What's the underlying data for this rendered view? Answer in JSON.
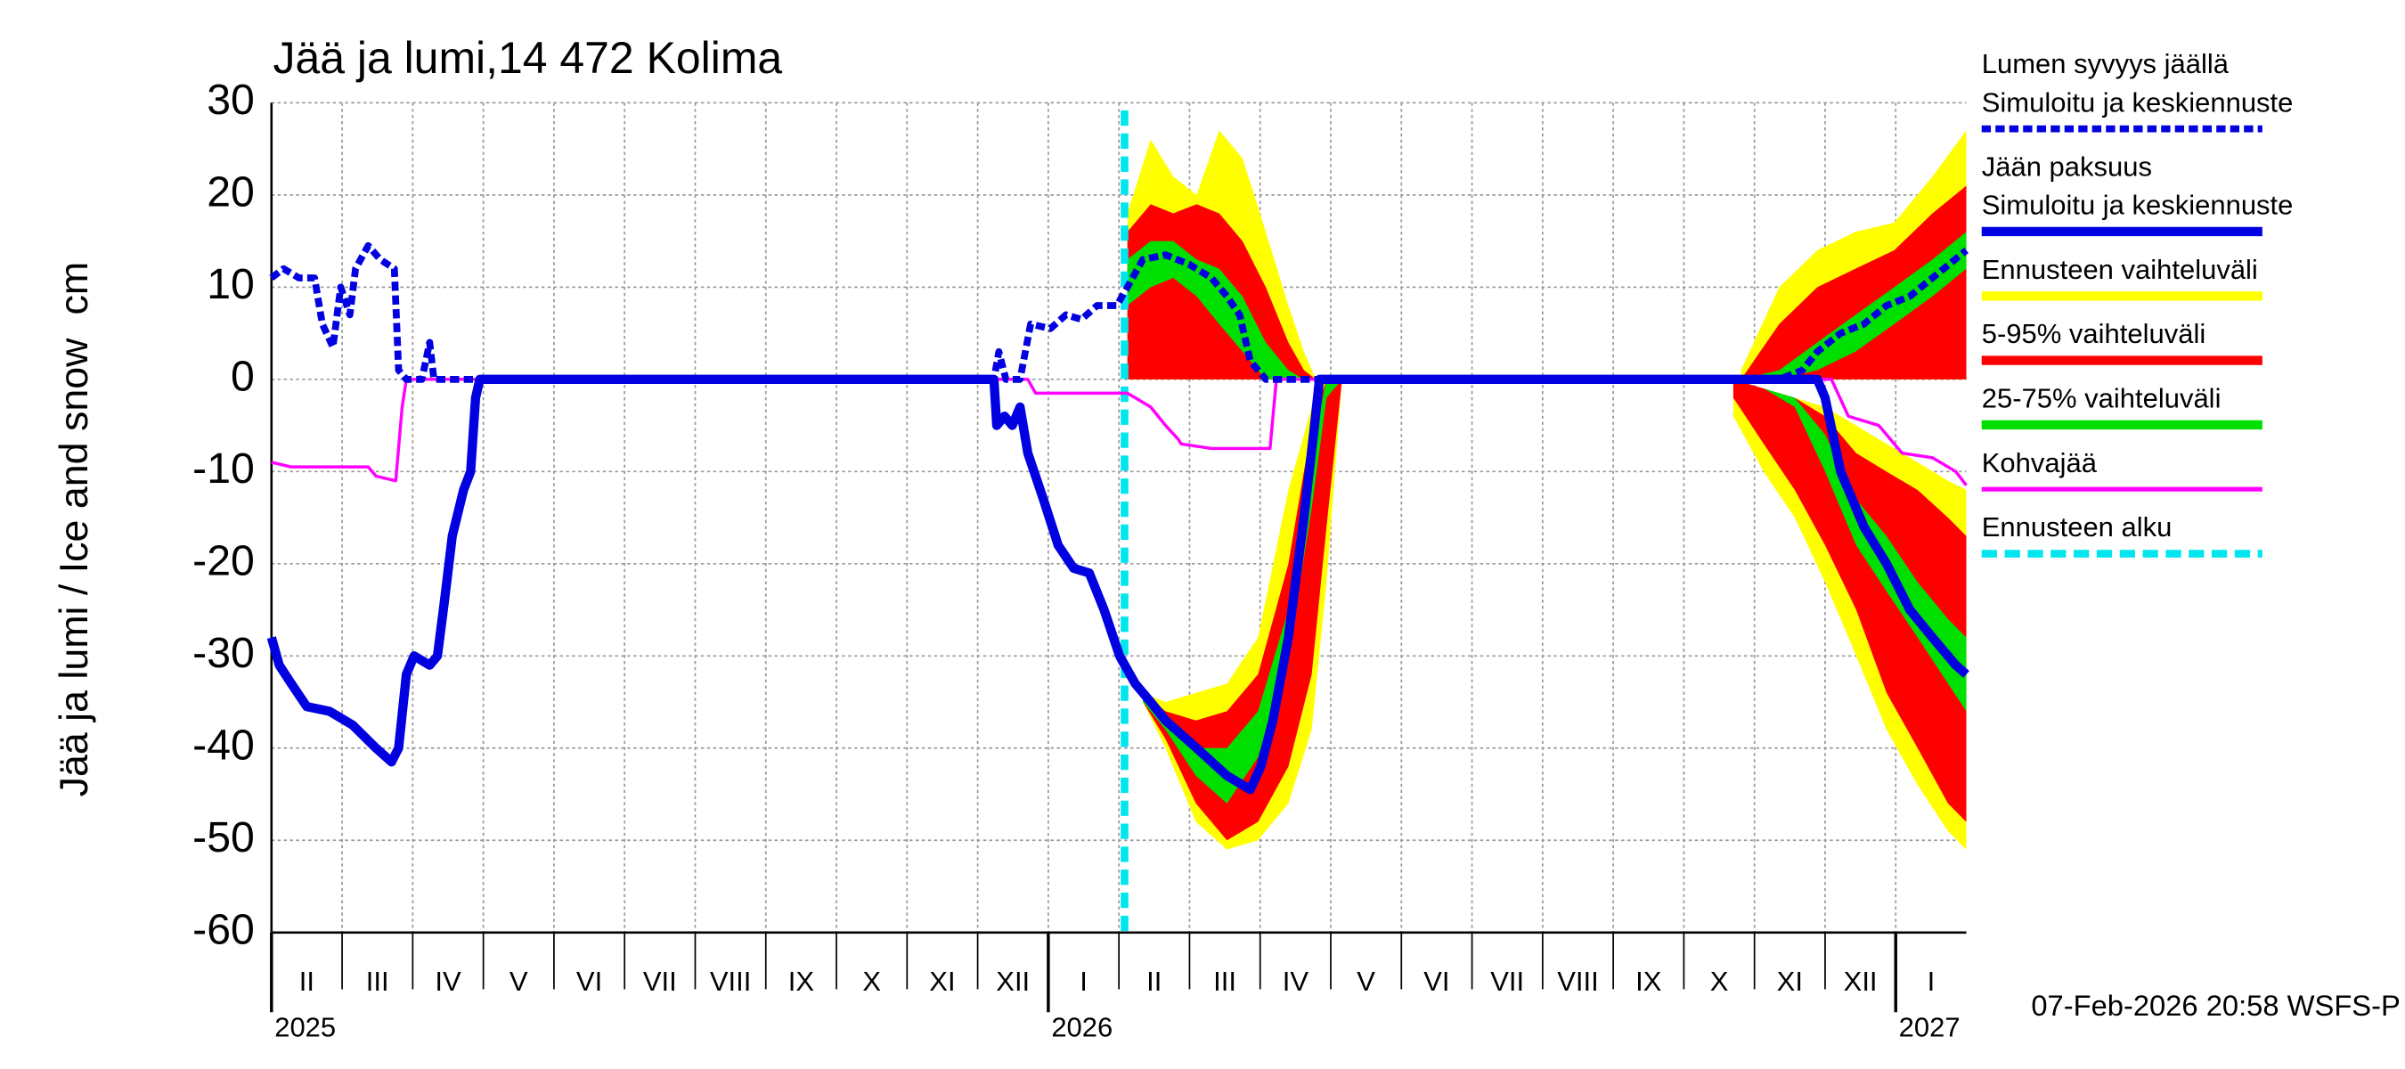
{
  "chart_data": {
    "type": "line",
    "title": "Jää ja lumi,14 472 Kolima",
    "y_label": "Jää ja lumi / Ice and snow",
    "y_unit": "cm",
    "footer": "07-Feb-2026 20:58 WSFS-P",
    "ylim": [
      -60,
      30
    ],
    "yticks": [
      -60,
      -50,
      -40,
      -30,
      -20,
      -10,
      0,
      10,
      20,
      30
    ],
    "xlim": [
      0,
      24
    ],
    "xticks": [
      1,
      2,
      3,
      4,
      5,
      6,
      7,
      8,
      9,
      10,
      11,
      12,
      13,
      14,
      15,
      16,
      17,
      18,
      19,
      20,
      21,
      22,
      23
    ],
    "grid": true,
    "month_labels": [
      {
        "value": 0.5,
        "label": "II"
      },
      {
        "value": 1.5,
        "label": "III"
      },
      {
        "value": 2.5,
        "label": "IV"
      },
      {
        "value": 3.5,
        "label": "V"
      },
      {
        "value": 4.5,
        "label": "VI"
      },
      {
        "value": 5.5,
        "label": "VII"
      },
      {
        "value": 6.5,
        "label": "VIII"
      },
      {
        "value": 7.5,
        "label": "IX"
      },
      {
        "value": 8.5,
        "label": "X"
      },
      {
        "value": 9.5,
        "label": "XI"
      },
      {
        "value": 10.5,
        "label": "XII"
      },
      {
        "value": 11.5,
        "label": "I"
      },
      {
        "value": 12.5,
        "label": "II"
      },
      {
        "value": 13.5,
        "label": "III"
      },
      {
        "value": 14.5,
        "label": "IV"
      },
      {
        "value": 15.5,
        "label": "V"
      },
      {
        "value": 16.5,
        "label": "VI"
      },
      {
        "value": 17.5,
        "label": "VII"
      },
      {
        "value": 18.5,
        "label": "VIII"
      },
      {
        "value": 19.5,
        "label": "IX"
      },
      {
        "value": 20.5,
        "label": "X"
      },
      {
        "value": 21.5,
        "label": "XI"
      },
      {
        "value": 22.5,
        "label": "XII"
      },
      {
        "value": 23.5,
        "label": "I"
      }
    ],
    "year_labels": [
      {
        "value": 0,
        "label": "2025"
      },
      {
        "value": 11,
        "label": "2026"
      },
      {
        "value": 23,
        "label": "2027"
      }
    ],
    "series": [
      {
        "name": "Lumen syvyys jäällä",
        "subtitle": "Simuloitu ja keskiennuste",
        "color": "#0000e0",
        "style": "dashed",
        "x": [
          0,
          0.17,
          0.39,
          0.61,
          0.72,
          0.87,
          0.98,
          1.11,
          1.19,
          1.37,
          1.54,
          1.74,
          1.8,
          1.91,
          2.13,
          2.24,
          2.3,
          2.45,
          10.23,
          10.3,
          10.4,
          10.6,
          10.75,
          11.03,
          11.25,
          11.47,
          11.69,
          11.97,
          12.12,
          12.34,
          12.66,
          12.99,
          13.31,
          13.53,
          13.71,
          13.86,
          14.08,
          21.35,
          21.68,
          21.89,
          22.22,
          22.55,
          22.87,
          23.2,
          23.52,
          24
        ],
        "values": [
          11,
          12,
          11,
          11,
          6,
          3.5,
          10,
          7,
          12,
          14.5,
          13,
          12,
          1,
          0,
          0,
          4,
          0,
          0,
          0,
          3,
          0,
          0,
          6,
          5.5,
          7,
          6.5,
          8,
          8,
          10,
          13,
          13.5,
          12.5,
          11,
          9,
          7,
          2,
          0,
          0,
          1,
          3,
          5,
          6,
          8,
          9,
          11,
          14
        ]
      },
      {
        "name": "Jään paksuus",
        "subtitle": "Simuloitu ja keskiennuste",
        "color": "#0000e0",
        "style": "solid",
        "x": [
          0,
          0.11,
          0.28,
          0.5,
          0.82,
          1.15,
          1.48,
          1.7,
          1.8,
          1.91,
          2.02,
          2.24,
          2.35,
          2.45,
          2.56,
          2.72,
          2.82,
          2.89,
          2.95,
          10.06,
          10.23,
          10.27,
          10.38,
          10.49,
          10.6,
          10.71,
          10.93,
          11.14,
          11.36,
          11.58,
          11.79,
          12.01,
          12.23,
          12.45,
          12.66,
          13.1,
          13.53,
          13.86,
          14.01,
          14.18,
          14.4,
          14.62,
          14.77,
          14.84,
          21.89,
          22.0,
          22.22,
          22.55,
          22.87,
          23.2,
          23.52,
          23.85,
          24
        ],
        "values": [
          -28,
          -31,
          -33,
          -35.5,
          -36,
          -37.5,
          -40,
          -41.5,
          -40,
          -32,
          -30,
          -31,
          -30,
          -24,
          -17,
          -12,
          -10,
          -2,
          0,
          0,
          0,
          -5,
          -4,
          -5,
          -3,
          -8,
          -13,
          -18,
          -20.5,
          -21,
          -25,
          -30,
          -33,
          -35,
          -37,
          -40,
          -43,
          -44.5,
          -42,
          -37,
          -28,
          -15,
          -5,
          0,
          0,
          -2,
          -10,
          -16,
          -20,
          -25,
          -28,
          -31,
          -32
        ]
      },
      {
        "name": "Kohvajää",
        "color": "#ff00ff",
        "style": "thin",
        "x": [
          0,
          0.28,
          1.37,
          1.48,
          1.76,
          1.85,
          1.91,
          10.71,
          10.82,
          12.12,
          12.23,
          12.45,
          12.66,
          12.84,
          12.88,
          13.31,
          14.14,
          14.23,
          22.09,
          22.33,
          22.76,
          23.09,
          23.52,
          23.85,
          24
        ],
        "values": [
          -9,
          -9.5,
          -9.5,
          -10.5,
          -11,
          -3,
          0,
          0,
          -1.5,
          -1.5,
          -2,
          -3,
          -5,
          -6.5,
          -7,
          -7.5,
          -7.5,
          0,
          0,
          -4,
          -5,
          -8,
          -8.5,
          -10,
          -11.5
        ]
      }
    ],
    "bands": [
      {
        "name": "Ennusteen vaihteluväli",
        "color": "#ffff00",
        "areas": [
          {
            "x": [
              12.12,
              12.45,
              12.77,
              13.1,
              13.42,
              13.75,
              14.08,
              14.4,
              14.62,
              14.79
            ],
            "high": [
              18,
              26,
              22,
              20,
              27,
              24,
              16,
              8,
              3,
              0
            ],
            "low": [
              0,
              0,
              0,
              0,
              0,
              0,
              0,
              0,
              0,
              0
            ]
          },
          {
            "x": [
              12.34,
              12.66,
              13.09,
              13.53,
              13.97,
              14.4,
              14.73,
              14.94,
              15.16
            ],
            "high": [
              -34,
              -35,
              -34,
              -33,
              -28,
              -12,
              -3,
              0,
              0
            ],
            "low": [
              -35,
              -40,
              -48,
              -51,
              -50,
              -46,
              -38,
              -22,
              0
            ]
          },
          {
            "x": [
              20.81,
              21.35,
              21.89,
              22.43,
              22.98,
              23.52,
              24
            ],
            "high": [
              1,
              10,
              14,
              16,
              17,
              22,
              27
            ],
            "low": [
              0,
              0,
              0,
              0,
              0,
              0,
              0
            ]
          },
          {
            "x": [
              20.7,
              21.13,
              21.57,
              22.0,
              22.44,
              22.87,
              23.31,
              23.74,
              24
            ],
            "high": [
              0,
              -2,
              -2,
              -3,
              -5,
              -7,
              -9,
              -11,
              -12
            ],
            "low": [
              -4,
              -10,
              -15,
              -22,
              -30,
              -38,
              -44,
              -49,
              -51
            ]
          }
        ]
      },
      {
        "name": "5-95% vaihteluväli",
        "color": "#ff0000",
        "areas": [
          {
            "x": [
              12.12,
              12.45,
              12.77,
              13.1,
              13.42,
              13.75,
              14.08,
              14.4,
              14.62,
              14.79
            ],
            "high": [
              16,
              19,
              18,
              19,
              18,
              15,
              10,
              4,
              1,
              0
            ],
            "low": [
              0,
              0,
              0,
              0,
              0,
              0,
              0,
              0,
              0,
              0
            ]
          },
          {
            "x": [
              12.34,
              12.66,
              13.09,
              13.53,
              13.97,
              14.4,
              14.73,
              14.94,
              15.16
            ],
            "high": [
              -34,
              -36,
              -37,
              -36,
              -32,
              -20,
              -5,
              0,
              0
            ],
            "low": [
              -35,
              -39,
              -46,
              -50,
              -48,
              -42,
              -32,
              -16,
              0
            ]
          },
          {
            "x": [
              20.81,
              21.35,
              21.89,
              22.43,
              22.98,
              23.52,
              24
            ],
            "high": [
              0,
              6,
              10,
              12,
              14,
              18,
              21
            ],
            "low": [
              0,
              0,
              0,
              0,
              0,
              0,
              0
            ]
          },
          {
            "x": [
              20.7,
              21.13,
              21.57,
              22.0,
              22.44,
              22.87,
              23.31,
              23.74,
              24
            ],
            "high": [
              0,
              -1,
              -2,
              -4,
              -8,
              -10,
              -12,
              -15,
              -17
            ],
            "low": [
              -2,
              -7,
              -12,
              -18,
              -25,
              -34,
              -40,
              -46,
              -48
            ]
          }
        ]
      },
      {
        "name": "25-75% vaihteluväli",
        "color": "#00e000",
        "areas": [
          {
            "x": [
              12.12,
              12.45,
              12.77,
              13.1,
              13.42,
              13.75,
              14.08,
              14.4,
              14.62,
              14.79
            ],
            "high": [
              13,
              15,
              15,
              13,
              12,
              9,
              4,
              1,
              0,
              0
            ],
            "low": [
              8,
              10,
              11,
              9,
              6,
              3,
              0,
              0,
              0,
              0
            ]
          },
          {
            "x": [
              12.34,
              12.66,
              13.09,
              13.53,
              13.97,
              14.4,
              14.73,
              14.94,
              15.16
            ],
            "high": [
              -34,
              -37,
              -40,
              -40,
              -36,
              -25,
              -8,
              0,
              0
            ],
            "low": [
              -35,
              -38,
              -43,
              -46,
              -41,
              -30,
              -14,
              -2,
              0
            ]
          },
          {
            "x": [
              20.81,
              21.35,
              21.89,
              22.43,
              22.98,
              23.52,
              24
            ],
            "high": [
              0,
              1,
              4,
              7,
              10,
              13,
              16
            ],
            "low": [
              0,
              0,
              1,
              3,
              6,
              9,
              12
            ]
          },
          {
            "x": [
              20.7,
              21.13,
              21.57,
              22.0,
              22.44,
              22.87,
              23.31,
              23.74,
              24
            ],
            "high": [
              0,
              -1,
              -2,
              -6,
              -13,
              -17,
              -22,
              -26,
              -28
            ],
            "low": [
              0,
              -1,
              -3,
              -10,
              -18,
              -23,
              -28,
              -33,
              -36
            ]
          }
        ]
      }
    ],
    "forecast_start": {
      "name": "Ennusteen alku",
      "color": "#00e5ee",
      "x": 12.08
    }
  }
}
